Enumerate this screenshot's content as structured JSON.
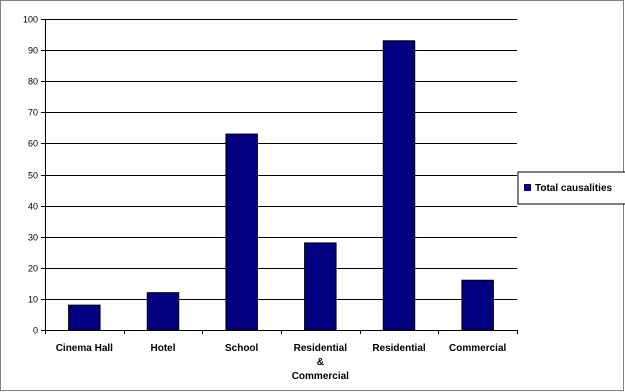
{
  "chart_data": {
    "type": "bar",
    "categories": [
      "Cinema Hall",
      "Hotel",
      "School",
      "Residential & Commercial",
      "Residential",
      "Commercial"
    ],
    "category_label_lines": [
      [
        "Cinema Hall"
      ],
      [
        "Hotel"
      ],
      [
        "School"
      ],
      [
        "Residential",
        "&",
        "Commercial"
      ],
      [
        "Residential"
      ],
      [
        "Commercial"
      ]
    ],
    "series": [
      {
        "name": "Total causalities",
        "values": [
          8,
          12,
          63,
          28,
          93,
          16
        ]
      }
    ],
    "ylim": [
      0,
      100
    ],
    "yticks": [
      0,
      10,
      20,
      30,
      40,
      50,
      60,
      70,
      80,
      90,
      100
    ],
    "grid": true,
    "legend_position": "right",
    "colors": {
      "bar": "#000080",
      "grid": "#000000",
      "frame": "#808080"
    }
  }
}
